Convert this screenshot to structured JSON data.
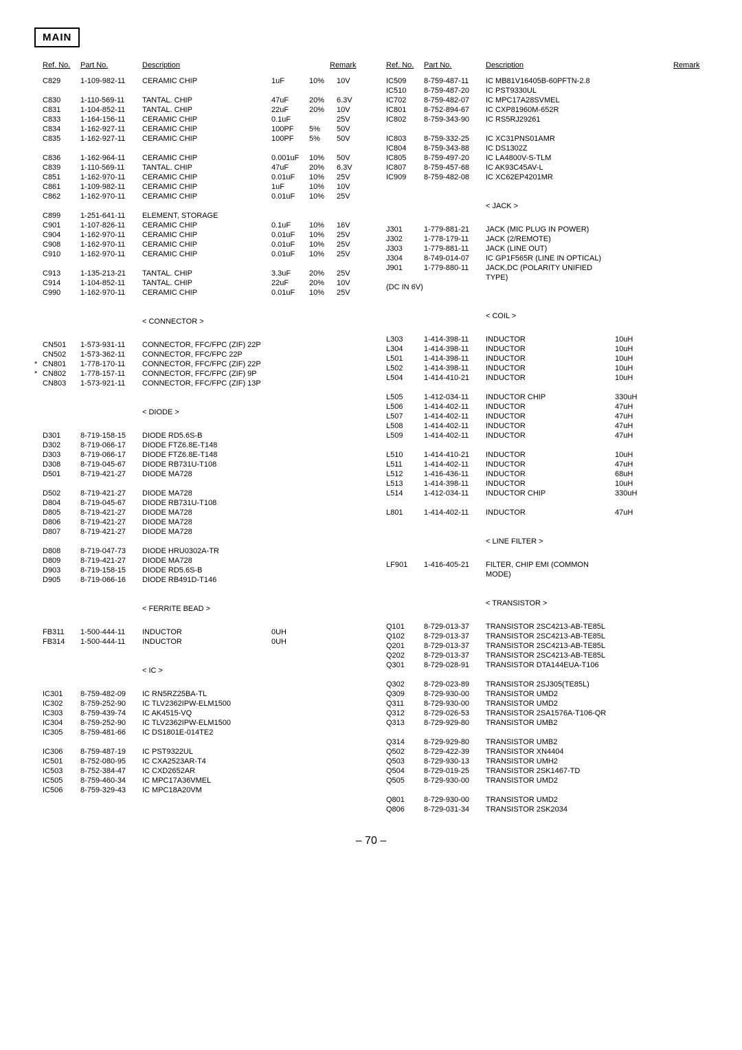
{
  "page_title": "MAIN",
  "page_number": "– 70 –",
  "headers": {
    "ref": "Ref. No.",
    "part": "Part No.",
    "desc": "Description",
    "remark": "Remark"
  },
  "sections": {
    "connector": "< CONNECTOR >",
    "diode": "< DIODE >",
    "ferrite": "< FERRITE BEAD >",
    "ic": "< IC >",
    "jack": "< JACK >",
    "coil": "< COIL >",
    "linefilter": "< LINE FILTER >",
    "transistor": "< TRANSISTOR >"
  },
  "left": [
    {
      "ref": "C829",
      "part": "1-109-982-11",
      "desc": "CERAMIC CHIP",
      "v1": "1uF",
      "v2": "10%",
      "v3": "10V"
    },
    {
      "spacer": true
    },
    {
      "ref": "C830",
      "part": "1-110-569-11",
      "desc": "TANTAL. CHIP",
      "v1": "47uF",
      "v2": "20%",
      "v3": "6.3V"
    },
    {
      "ref": "C831",
      "part": "1-104-852-11",
      "desc": "TANTAL. CHIP",
      "v1": "22uF",
      "v2": "20%",
      "v3": "10V"
    },
    {
      "ref": "C833",
      "part": "1-164-156-11",
      "desc": "CERAMIC CHIP",
      "v1": "0.1uF",
      "v2": "",
      "v3": "25V"
    },
    {
      "ref": "C834",
      "part": "1-162-927-11",
      "desc": "CERAMIC CHIP",
      "v1": "100PF",
      "v2": "5%",
      "v3": "50V"
    },
    {
      "ref": "C835",
      "part": "1-162-927-11",
      "desc": "CERAMIC CHIP",
      "v1": "100PF",
      "v2": "5%",
      "v3": "50V"
    },
    {
      "spacer": true
    },
    {
      "ref": "C836",
      "part": "1-162-964-11",
      "desc": "CERAMIC CHIP",
      "v1": "0.001uF",
      "v2": "10%",
      "v3": "50V"
    },
    {
      "ref": "C839",
      "part": "1-110-569-11",
      "desc": "TANTAL. CHIP",
      "v1": "47uF",
      "v2": "20%",
      "v3": "6.3V"
    },
    {
      "ref": "C851",
      "part": "1-162-970-11",
      "desc": "CERAMIC CHIP",
      "v1": "0.01uF",
      "v2": "10%",
      "v3": "25V"
    },
    {
      "ref": "C861",
      "part": "1-109-982-11",
      "desc": "CERAMIC CHIP",
      "v1": "1uF",
      "v2": "10%",
      "v3": "10V"
    },
    {
      "ref": "C862",
      "part": "1-162-970-11",
      "desc": "CERAMIC CHIP",
      "v1": "0.01uF",
      "v2": "10%",
      "v3": "25V"
    },
    {
      "spacer": true
    },
    {
      "ref": "C899",
      "part": "1-251-641-11",
      "desc": "ELEMENT, STORAGE",
      "v1": "",
      "v2": "",
      "v3": ""
    },
    {
      "ref": "C901",
      "part": "1-107-826-11",
      "desc": "CERAMIC CHIP",
      "v1": "0.1uF",
      "v2": "10%",
      "v3": "16V"
    },
    {
      "ref": "C904",
      "part": "1-162-970-11",
      "desc": "CERAMIC CHIP",
      "v1": "0.01uF",
      "v2": "10%",
      "v3": "25V"
    },
    {
      "ref": "C908",
      "part": "1-162-970-11",
      "desc": "CERAMIC CHIP",
      "v1": "0.01uF",
      "v2": "10%",
      "v3": "25V"
    },
    {
      "ref": "C910",
      "part": "1-162-970-11",
      "desc": "CERAMIC CHIP",
      "v1": "0.01uF",
      "v2": "10%",
      "v3": "25V"
    },
    {
      "spacer": true
    },
    {
      "ref": "C913",
      "part": "1-135-213-21",
      "desc": "TANTAL. CHIP",
      "v1": "3.3uF",
      "v2": "20%",
      "v3": "25V"
    },
    {
      "ref": "C914",
      "part": "1-104-852-11",
      "desc": "TANTAL. CHIP",
      "v1": "22uF",
      "v2": "20%",
      "v3": "10V"
    },
    {
      "ref": "C990",
      "part": "1-162-970-11",
      "desc": "CERAMIC CHIP",
      "v1": "0.01uF",
      "v2": "10%",
      "v3": "25V"
    },
    {
      "spacer": true
    },
    {
      "section": "connector"
    },
    {
      "spacer": true
    },
    {
      "ref": "CN501",
      "part": "1-573-931-11",
      "desc": "CONNECTOR, FFC/FPC (ZIF) 22P",
      "v1": "",
      "v2": "",
      "v3": ""
    },
    {
      "ref": "CN502",
      "part": "1-573-362-11",
      "desc": "CONNECTOR, FFC/FPC 22P",
      "v1": "",
      "v2": "",
      "v3": ""
    },
    {
      "star": "*",
      "ref": "CN801",
      "part": "1-778-170-11",
      "desc": "CONNECTOR, FFC/FPC (ZIF) 22P",
      "v1": "",
      "v2": "",
      "v3": ""
    },
    {
      "star": "*",
      "ref": "CN802",
      "part": "1-778-157-11",
      "desc": "CONNECTOR, FFC/FPC (ZIF) 9P",
      "v1": "",
      "v2": "",
      "v3": ""
    },
    {
      "ref": "CN803",
      "part": "1-573-921-11",
      "desc": "CONNECTOR, FFC/FPC (ZIF) 13P",
      "v1": "",
      "v2": "",
      "v3": ""
    },
    {
      "spacer": true
    },
    {
      "section": "diode"
    },
    {
      "spacer": true
    },
    {
      "ref": "D301",
      "part": "8-719-158-15",
      "desc": "DIODE  RD5.6S-B",
      "v1": "",
      "v2": "",
      "v3": ""
    },
    {
      "ref": "D302",
      "part": "8-719-066-17",
      "desc": "DIODE  FTZ6.8E-T148",
      "v1": "",
      "v2": "",
      "v3": ""
    },
    {
      "ref": "D303",
      "part": "8-719-066-17",
      "desc": "DIODE  FTZ6.8E-T148",
      "v1": "",
      "v2": "",
      "v3": ""
    },
    {
      "ref": "D308",
      "part": "8-719-045-67",
      "desc": "DIODE  RB731U-T108",
      "v1": "",
      "v2": "",
      "v3": ""
    },
    {
      "ref": "D501",
      "part": "8-719-421-27",
      "desc": "DIODE  MA728",
      "v1": "",
      "v2": "",
      "v3": ""
    },
    {
      "spacer": true
    },
    {
      "ref": "D502",
      "part": "8-719-421-27",
      "desc": "DIODE  MA728",
      "v1": "",
      "v2": "",
      "v3": ""
    },
    {
      "ref": "D804",
      "part": "8-719-045-67",
      "desc": "DIODE  RB731U-T108",
      "v1": "",
      "v2": "",
      "v3": ""
    },
    {
      "ref": "D805",
      "part": "8-719-421-27",
      "desc": "DIODE  MA728",
      "v1": "",
      "v2": "",
      "v3": ""
    },
    {
      "ref": "D806",
      "part": "8-719-421-27",
      "desc": "DIODE  MA728",
      "v1": "",
      "v2": "",
      "v3": ""
    },
    {
      "ref": "D807",
      "part": "8-719-421-27",
      "desc": "DIODE  MA728",
      "v1": "",
      "v2": "",
      "v3": ""
    },
    {
      "spacer": true
    },
    {
      "ref": "D808",
      "part": "8-719-047-73",
      "desc": "DIODE  HRU0302A-TR",
      "v1": "",
      "v2": "",
      "v3": ""
    },
    {
      "ref": "D809",
      "part": "8-719-421-27",
      "desc": "DIODE  MA728",
      "v1": "",
      "v2": "",
      "v3": ""
    },
    {
      "ref": "D903",
      "part": "8-719-158-15",
      "desc": "DIODE  RD5.6S-B",
      "v1": "",
      "v2": "",
      "v3": ""
    },
    {
      "ref": "D905",
      "part": "8-719-066-16",
      "desc": "DIODE  RB491D-T146",
      "v1": "",
      "v2": "",
      "v3": ""
    },
    {
      "spacer": true
    },
    {
      "section": "ferrite"
    },
    {
      "spacer": true
    },
    {
      "ref": "FB311",
      "part": "1-500-444-11",
      "desc": "INDUCTOR",
      "v1": "0UH",
      "v2": "",
      "v3": ""
    },
    {
      "ref": "FB314",
      "part": "1-500-444-11",
      "desc": "INDUCTOR",
      "v1": "0UH",
      "v2": "",
      "v3": ""
    },
    {
      "spacer": true
    },
    {
      "section": "ic"
    },
    {
      "spacer": true
    },
    {
      "ref": "IC301",
      "part": "8-759-482-09",
      "desc": "IC   RN5RZ25BA-TL",
      "v1": "",
      "v2": "",
      "v3": ""
    },
    {
      "ref": "IC302",
      "part": "8-759-252-90",
      "desc": "IC   TLV2362IPW-ELM1500",
      "v1": "",
      "v2": "",
      "v3": ""
    },
    {
      "ref": "IC303",
      "part": "8-759-439-74",
      "desc": "IC   AK4515-VQ",
      "v1": "",
      "v2": "",
      "v3": ""
    },
    {
      "ref": "IC304",
      "part": "8-759-252-90",
      "desc": "IC   TLV2362IPW-ELM1500",
      "v1": "",
      "v2": "",
      "v3": ""
    },
    {
      "ref": "IC305",
      "part": "8-759-481-66",
      "desc": "IC   DS1801E-014TE2",
      "v1": "",
      "v2": "",
      "v3": ""
    },
    {
      "spacer": true
    },
    {
      "ref": "IC306",
      "part": "8-759-487-19",
      "desc": "IC   PST9322UL",
      "v1": "",
      "v2": "",
      "v3": ""
    },
    {
      "ref": "IC501",
      "part": "8-752-080-95",
      "desc": "IC   CXA2523AR-T4",
      "v1": "",
      "v2": "",
      "v3": ""
    },
    {
      "ref": "IC503",
      "part": "8-752-384-47",
      "desc": "IC   CXD2652AR",
      "v1": "",
      "v2": "",
      "v3": ""
    },
    {
      "ref": "IC505",
      "part": "8-759-460-34",
      "desc": "IC   MPC17A36VMEL",
      "v1": "",
      "v2": "",
      "v3": ""
    },
    {
      "ref": "IC506",
      "part": "8-759-329-43",
      "desc": "IC   MPC18A20VM",
      "v1": "",
      "v2": "",
      "v3": ""
    }
  ],
  "right": [
    {
      "ref": "IC509",
      "part": "8-759-487-11",
      "desc": "IC   MB81V16405B-60PFTN-2.8",
      "v1": "",
      "v2": "",
      "v3": ""
    },
    {
      "ref": "IC510",
      "part": "8-759-487-20",
      "desc": "IC   PST9330UL",
      "v1": "",
      "v2": "",
      "v3": ""
    },
    {
      "ref": "IC702",
      "part": "8-759-482-07",
      "desc": "IC   MPC17A28SVMEL",
      "v1": "",
      "v2": "",
      "v3": ""
    },
    {
      "ref": "IC801",
      "part": "8-752-894-67",
      "desc": "IC   CXP81960M-652R",
      "v1": "",
      "v2": "",
      "v3": ""
    },
    {
      "ref": "IC802",
      "part": "8-759-343-90",
      "desc": "IC   RS5RJ29261",
      "v1": "",
      "v2": "",
      "v3": ""
    },
    {
      "spacer": true
    },
    {
      "ref": "IC803",
      "part": "8-759-332-25",
      "desc": "IC   XC31PNS01AMR",
      "v1": "",
      "v2": "",
      "v3": ""
    },
    {
      "ref": "IC804",
      "part": "8-759-343-88",
      "desc": "IC   DS1302Z",
      "v1": "",
      "v2": "",
      "v3": ""
    },
    {
      "ref": "IC805",
      "part": "8-759-497-20",
      "desc": "IC   LA4800V-S-TLM",
      "v1": "",
      "v2": "",
      "v3": ""
    },
    {
      "ref": "IC807",
      "part": "8-759-457-68",
      "desc": "IC   AK93C45AV-L",
      "v1": "",
      "v2": "",
      "v3": ""
    },
    {
      "ref": "IC909",
      "part": "8-759-482-08",
      "desc": "IC   XC62EP4201MR",
      "v1": "",
      "v2": "",
      "v3": ""
    },
    {
      "spacer": true
    },
    {
      "section": "jack"
    },
    {
      "spacer": true
    },
    {
      "ref": "J301",
      "part": "1-779-881-21",
      "desc": "JACK (MIC PLUG IN POWER)",
      "v1": "",
      "v2": "",
      "v3": ""
    },
    {
      "ref": "J302",
      "part": "1-778-179-11",
      "desc": "JACK (2/REMOTE)",
      "v1": "",
      "v2": "",
      "v3": ""
    },
    {
      "ref": "J303",
      "part": "1-779-881-11",
      "desc": "JACK (LINE OUT)",
      "v1": "",
      "v2": "",
      "v3": ""
    },
    {
      "ref": "J304",
      "part": "8-749-014-07",
      "desc": "IC GP1F565R (LINE IN OPTICAL)",
      "v1": "",
      "v2": "",
      "v3": ""
    },
    {
      "ref": "J901",
      "part": "1-779-880-11",
      "desc": "JACK,DC (POLARITY UNIFIED TYPE)",
      "v1": "",
      "v2": "",
      "v3": ""
    },
    {
      "ref": "(DC IN 6V)",
      "part": "",
      "desc": "",
      "v1": "",
      "v2": "",
      "v3": ""
    },
    {
      "spacer": true
    },
    {
      "section": "coil"
    },
    {
      "spacer": true
    },
    {
      "ref": "L303",
      "part": "1-414-398-11",
      "desc": "INDUCTOR",
      "v1": "10uH",
      "v2": "",
      "v3": ""
    },
    {
      "ref": "L304",
      "part": "1-414-398-11",
      "desc": "INDUCTOR",
      "v1": "10uH",
      "v2": "",
      "v3": ""
    },
    {
      "ref": "L501",
      "part": "1-414-398-11",
      "desc": "INDUCTOR",
      "v1": "10uH",
      "v2": "",
      "v3": ""
    },
    {
      "ref": "L502",
      "part": "1-414-398-11",
      "desc": "INDUCTOR",
      "v1": "10uH",
      "v2": "",
      "v3": ""
    },
    {
      "ref": "L504",
      "part": "1-414-410-21",
      "desc": "INDUCTOR",
      "v1": "10uH",
      "v2": "",
      "v3": ""
    },
    {
      "spacer": true
    },
    {
      "ref": "L505",
      "part": "1-412-034-11",
      "desc": "INDUCTOR CHIP",
      "v1": "330uH",
      "v2": "",
      "v3": ""
    },
    {
      "ref": "L506",
      "part": "1-414-402-11",
      "desc": "INDUCTOR",
      "v1": "47uH",
      "v2": "",
      "v3": ""
    },
    {
      "ref": "L507",
      "part": "1-414-402-11",
      "desc": "INDUCTOR",
      "v1": "47uH",
      "v2": "",
      "v3": ""
    },
    {
      "ref": "L508",
      "part": "1-414-402-11",
      "desc": "INDUCTOR",
      "v1": "47uH",
      "v2": "",
      "v3": ""
    },
    {
      "ref": "L509",
      "part": "1-414-402-11",
      "desc": "INDUCTOR",
      "v1": "47uH",
      "v2": "",
      "v3": ""
    },
    {
      "spacer": true
    },
    {
      "ref": "L510",
      "part": "1-414-410-21",
      "desc": "INDUCTOR",
      "v1": "10uH",
      "v2": "",
      "v3": ""
    },
    {
      "ref": "L511",
      "part": "1-414-402-11",
      "desc": "INDUCTOR",
      "v1": "47uH",
      "v2": "",
      "v3": ""
    },
    {
      "ref": "L512",
      "part": "1-416-436-11",
      "desc": "INDUCTOR",
      "v1": "68uH",
      "v2": "",
      "v3": ""
    },
    {
      "ref": "L513",
      "part": "1-414-398-11",
      "desc": "INDUCTOR",
      "v1": "10uH",
      "v2": "",
      "v3": ""
    },
    {
      "ref": "L514",
      "part": "1-412-034-11",
      "desc": "INDUCTOR CHIP",
      "v1": "330uH",
      "v2": "",
      "v3": ""
    },
    {
      "spacer": true
    },
    {
      "ref": "L801",
      "part": "1-414-402-11",
      "desc": "INDUCTOR",
      "v1": "47uH",
      "v2": "",
      "v3": ""
    },
    {
      "spacer": true
    },
    {
      "section": "linefilter"
    },
    {
      "spacer": true
    },
    {
      "ref": "LF901",
      "part": "1-416-405-21",
      "desc": "FILTER, CHIP EMI (COMMON MODE)",
      "v1": "",
      "v2": "",
      "v3": ""
    },
    {
      "spacer": true
    },
    {
      "section": "transistor"
    },
    {
      "spacer": true
    },
    {
      "ref": "Q101",
      "part": "8-729-013-37",
      "desc": "TRANSISTOR  2SC4213-AB-TE85L",
      "v1": "",
      "v2": "",
      "v3": ""
    },
    {
      "ref": "Q102",
      "part": "8-729-013-37",
      "desc": "TRANSISTOR  2SC4213-AB-TE85L",
      "v1": "",
      "v2": "",
      "v3": ""
    },
    {
      "ref": "Q201",
      "part": "8-729-013-37",
      "desc": "TRANSISTOR  2SC4213-AB-TE85L",
      "v1": "",
      "v2": "",
      "v3": ""
    },
    {
      "ref": "Q202",
      "part": "8-729-013-37",
      "desc": "TRANSISTOR  2SC4213-AB-TE85L",
      "v1": "",
      "v2": "",
      "v3": ""
    },
    {
      "ref": "Q301",
      "part": "8-729-028-91",
      "desc": "TRANSISTOR  DTA144EUA-T106",
      "v1": "",
      "v2": "",
      "v3": ""
    },
    {
      "spacer": true
    },
    {
      "ref": "Q302",
      "part": "8-729-023-89",
      "desc": "TRANSISTOR  2SJ305(TE85L)",
      "v1": "",
      "v2": "",
      "v3": ""
    },
    {
      "ref": "Q309",
      "part": "8-729-930-00",
      "desc": "TRANSISTOR  UMD2",
      "v1": "",
      "v2": "",
      "v3": ""
    },
    {
      "ref": "Q311",
      "part": "8-729-930-00",
      "desc": "TRANSISTOR  UMD2",
      "v1": "",
      "v2": "",
      "v3": ""
    },
    {
      "ref": "Q312",
      "part": "8-729-026-53",
      "desc": "TRANSISTOR  2SA1576A-T106-QR",
      "v1": "",
      "v2": "",
      "v3": ""
    },
    {
      "ref": "Q313",
      "part": "8-729-929-80",
      "desc": "TRANSISTOR  UMB2",
      "v1": "",
      "v2": "",
      "v3": ""
    },
    {
      "spacer": true
    },
    {
      "ref": "Q314",
      "part": "8-729-929-80",
      "desc": "TRANSISTOR  UMB2",
      "v1": "",
      "v2": "",
      "v3": ""
    },
    {
      "ref": "Q502",
      "part": "8-729-422-39",
      "desc": "TRANSISTOR  XN4404",
      "v1": "",
      "v2": "",
      "v3": ""
    },
    {
      "ref": "Q503",
      "part": "8-729-930-13",
      "desc": "TRANSISTOR  UMH2",
      "v1": "",
      "v2": "",
      "v3": ""
    },
    {
      "ref": "Q504",
      "part": "8-729-019-25",
      "desc": "TRANSISTOR  2SK1467-TD",
      "v1": "",
      "v2": "",
      "v3": ""
    },
    {
      "ref": "Q505",
      "part": "8-729-930-00",
      "desc": "TRANSISTOR  UMD2",
      "v1": "",
      "v2": "",
      "v3": ""
    },
    {
      "spacer": true
    },
    {
      "ref": "Q801",
      "part": "8-729-930-00",
      "desc": "TRANSISTOR  UMD2",
      "v1": "",
      "v2": "",
      "v3": ""
    },
    {
      "ref": "Q806",
      "part": "8-729-031-34",
      "desc": "TRANSISTOR  2SK2034",
      "v1": "",
      "v2": "",
      "v3": ""
    }
  ]
}
